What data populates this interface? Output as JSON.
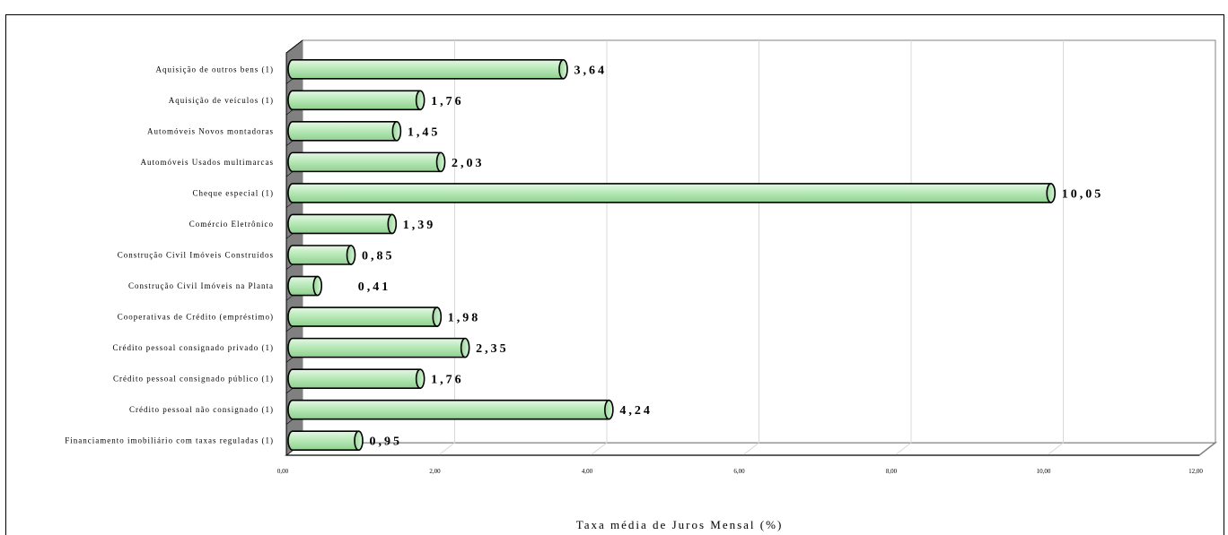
{
  "chart_data": {
    "type": "bar",
    "orientation": "horizontal",
    "title": "",
    "xlabel": "Taxa média de Juros Mensal (%)",
    "ylabel": "",
    "xlim": [
      0,
      12
    ],
    "x_ticks": [
      "0,00",
      "2,00",
      "4,00",
      "6,00",
      "8,00",
      "10,00",
      "12,00"
    ],
    "grid": true,
    "legend": "none",
    "bar_color": "#b4e6b4",
    "categories": [
      "Aquisição de outros bens (1)",
      "Aquisição de veículos (1)",
      "Automóveis Novos montadoras",
      "Automóveis Usados multimarcas",
      "Cheque especial (1)",
      "Comércio Eletrônico",
      "Construção Civil Imóveis Construídos",
      "Construção Civil Imóveis na Planta",
      "Cooperativas de Crédito (empréstimo)",
      "Crédito pessoal consignado privado (1)",
      "Crédito pessoal consignado público (1)",
      "Crédito pessoal não consignado (1)",
      "Financiamento imobiliário com taxas reguladas (1)"
    ],
    "values": [
      3.64,
      1.76,
      1.45,
      2.03,
      10.05,
      1.39,
      0.85,
      0.41,
      1.98,
      2.35,
      1.76,
      4.24,
      0.95
    ],
    "value_labels": [
      "3,64",
      "1,76",
      "1,45",
      "2,03",
      "10,05",
      "1,39",
      "0,85",
      "0,41",
      "1,98",
      "2,35",
      "1,76",
      "4,24",
      "0,95"
    ]
  }
}
